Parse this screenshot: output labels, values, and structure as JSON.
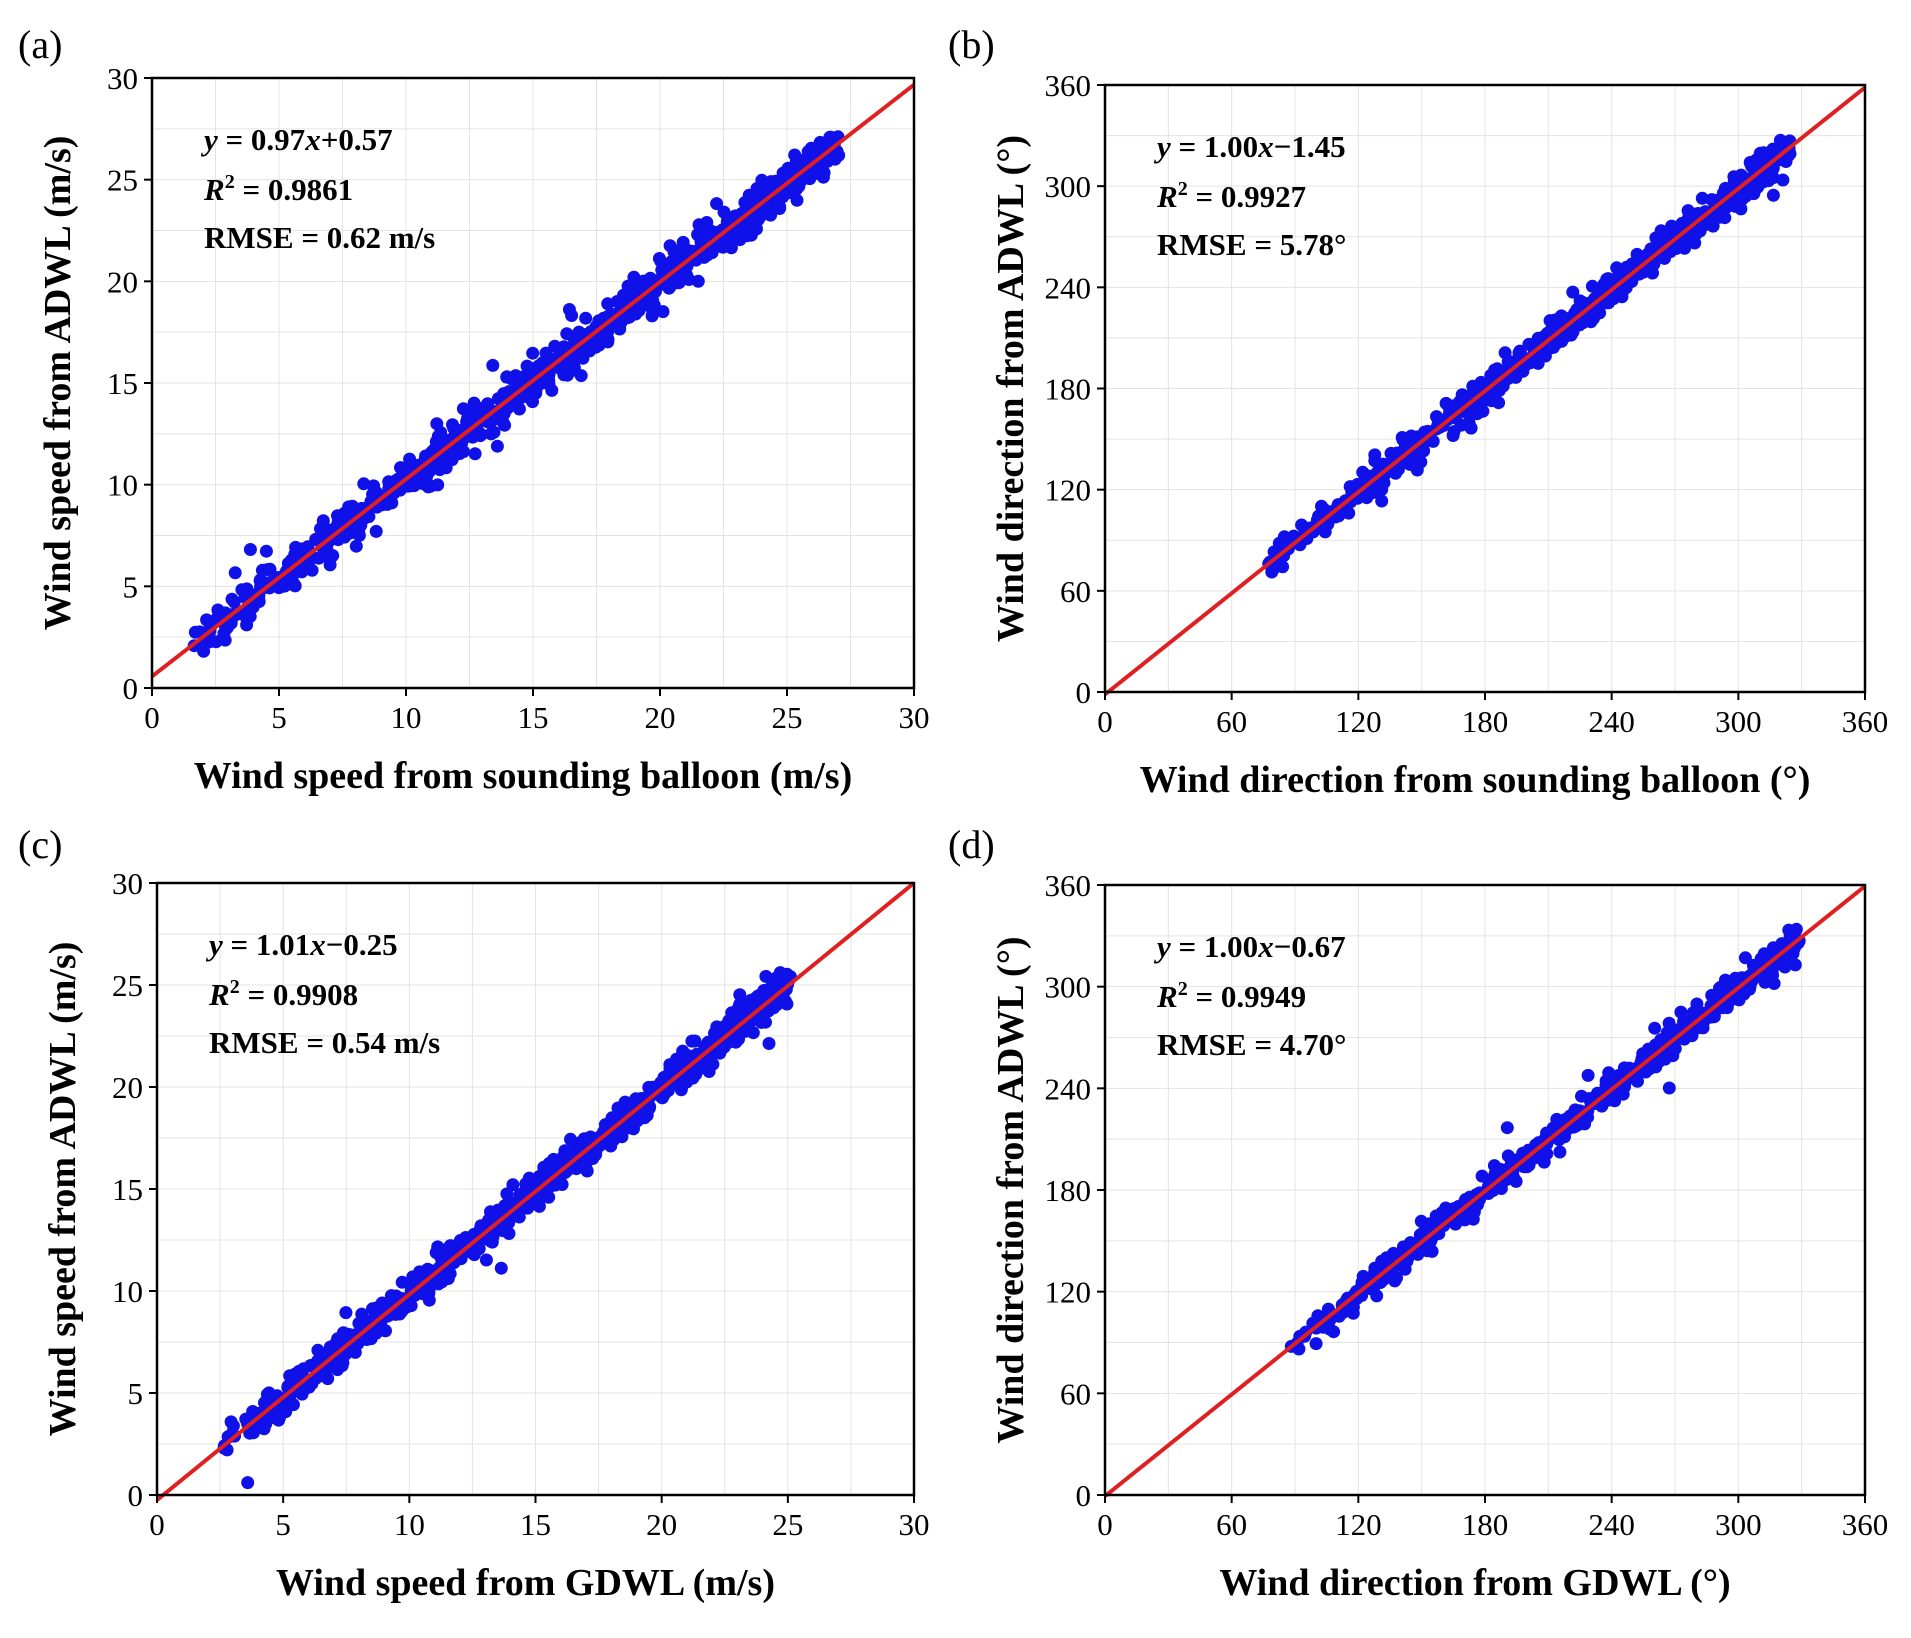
{
  "figure": {
    "panels": [
      {
        "label": "(a)",
        "xlabel": "Wind speed from sounding balloon  (m/s)",
        "ylabel": "Wind speed from ADWL (m/s)",
        "xlim": [
          0,
          30
        ],
        "ylim": [
          0,
          30
        ],
        "ticks": [
          0,
          5,
          10,
          15,
          20,
          25,
          30
        ],
        "stats": {
          "eq_lhs": "y",
          "eq_rhs": " = 0.97",
          "eq_var": "x",
          "eq_tail": "+0.57",
          "r2_label": "R",
          "r2_sup": "2",
          "r2_value": " = 0.9861",
          "rmse": "RMSE = 0.62 m/s"
        }
      },
      {
        "label": "(b)",
        "xlabel": "Wind direction from sounding balloon (°)",
        "ylabel": "Wind direction from ADWL (°)",
        "xlim": [
          0,
          360
        ],
        "ylim": [
          0,
          360
        ],
        "ticks": [
          0,
          60,
          120,
          180,
          240,
          300,
          360
        ],
        "stats": {
          "eq_lhs": "y",
          "eq_rhs": " = 1.00",
          "eq_var": "x",
          "eq_tail": "−1.45",
          "r2_label": "R",
          "r2_sup": "2",
          "r2_value": " = 0.9927",
          "rmse": "RMSE = 5.78°"
        }
      },
      {
        "label": "(c)",
        "xlabel": "Wind speed from GDWL  (m/s)",
        "ylabel": "Wind speed from ADWL (m/s)",
        "xlim": [
          0,
          30
        ],
        "ylim": [
          0,
          30
        ],
        "ticks": [
          0,
          5,
          10,
          15,
          20,
          25,
          30
        ],
        "stats": {
          "eq_lhs": "y",
          "eq_rhs": " = 1.01",
          "eq_var": "x",
          "eq_tail": "−0.25",
          "r2_label": "R",
          "r2_sup": "2",
          "r2_value": " = 0.9908",
          "rmse": "RMSE = 0.54 m/s"
        }
      },
      {
        "label": "(d)",
        "xlabel": "Wind direction from GDWL (°)",
        "ylabel": "Wind direction from ADWL (°)",
        "xlim": [
          0,
          360
        ],
        "ylim": [
          0,
          360
        ],
        "ticks": [
          0,
          60,
          120,
          180,
          240,
          300,
          360
        ],
        "stats": {
          "eq_lhs": "y",
          "eq_rhs": " = 1.00",
          "eq_var": "x",
          "eq_tail": "−0.67",
          "r2_label": "R",
          "r2_sup": "2",
          "r2_value": " = 0.9949",
          "rmse": "RMSE = 4.70°"
        }
      }
    ]
  },
  "chart_data": [
    {
      "type": "scatter",
      "panel": "(a)",
      "title": "",
      "xlabel": "Wind speed from sounding balloon  (m/s)",
      "ylabel": "Wind speed from ADWL (m/s)",
      "xlim": [
        0,
        30
      ],
      "ylim": [
        0,
        30
      ],
      "grid": true,
      "fit_line": {
        "slope": 0.97,
        "intercept": 0.57,
        "x_range": [
          0,
          30
        ]
      },
      "stats": {
        "equation": "y = 0.97x+0.57",
        "r2": 0.9861,
        "rmse": "0.62 m/s"
      },
      "series": [
        {
          "name": "samples",
          "color": "#1010e8",
          "x_range": [
            1.5,
            27
          ],
          "slope": 0.97,
          "intercept": 0.57,
          "spread": 0.6,
          "count": 900
        }
      ],
      "colors": {
        "points": "#1010e8",
        "line": "#e02020"
      }
    },
    {
      "type": "scatter",
      "panel": "(b)",
      "title": "",
      "xlabel": "Wind direction from sounding balloon (°)",
      "ylabel": "Wind direction from ADWL (°)",
      "xlim": [
        0,
        360
      ],
      "ylim": [
        0,
        360
      ],
      "grid": true,
      "fit_line": {
        "slope": 1.0,
        "intercept": -1.45,
        "x_range": [
          0,
          360
        ]
      },
      "stats": {
        "equation": "y = 1.00x−1.45",
        "r2": 0.9927,
        "rmse": "5.78°"
      },
      "series": [
        {
          "name": "samples",
          "color": "#1010e8",
          "x_range": [
            75,
            325
          ],
          "slope": 1.0,
          "intercept": -1.45,
          "spread": 5.8,
          "count": 650
        }
      ],
      "colors": {
        "points": "#1010e8",
        "line": "#e02020"
      }
    },
    {
      "type": "scatter",
      "panel": "(c)",
      "title": "",
      "xlabel": "Wind speed from GDWL  (m/s)",
      "ylabel": "Wind speed from ADWL (m/s)",
      "xlim": [
        0,
        30
      ],
      "ylim": [
        0,
        30
      ],
      "grid": true,
      "fit_line": {
        "slope": 1.01,
        "intercept": -0.25,
        "x_range": [
          0,
          30
        ]
      },
      "stats": {
        "equation": "y = 1.01x−0.25",
        "r2": 0.9908,
        "rmse": "0.54 m/s"
      },
      "series": [
        {
          "name": "samples",
          "color": "#1010e8",
          "x_range": [
            2.5,
            25
          ],
          "slope": 1.01,
          "intercept": -0.25,
          "spread": 0.5,
          "count": 900
        }
      ],
      "colors": {
        "points": "#1010e8",
        "line": "#e02020"
      }
    },
    {
      "type": "scatter",
      "panel": "(d)",
      "title": "",
      "xlabel": "Wind direction from GDWL (°)",
      "ylabel": "Wind direction from ADWL (°)",
      "xlim": [
        0,
        360
      ],
      "ylim": [
        0,
        360
      ],
      "grid": true,
      "fit_line": {
        "slope": 1.0,
        "intercept": -0.67,
        "x_range": [
          0,
          360
        ]
      },
      "stats": {
        "equation": "y = 1.00x−0.67",
        "r2": 0.9949,
        "rmse": "4.70°"
      },
      "series": [
        {
          "name": "samples",
          "color": "#1010e8",
          "x_range": [
            88,
            328
          ],
          "slope": 1.0,
          "intercept": -0.67,
          "spread": 4.7,
          "count": 650
        }
      ],
      "colors": {
        "points": "#1010e8",
        "line": "#e02020"
      }
    }
  ]
}
